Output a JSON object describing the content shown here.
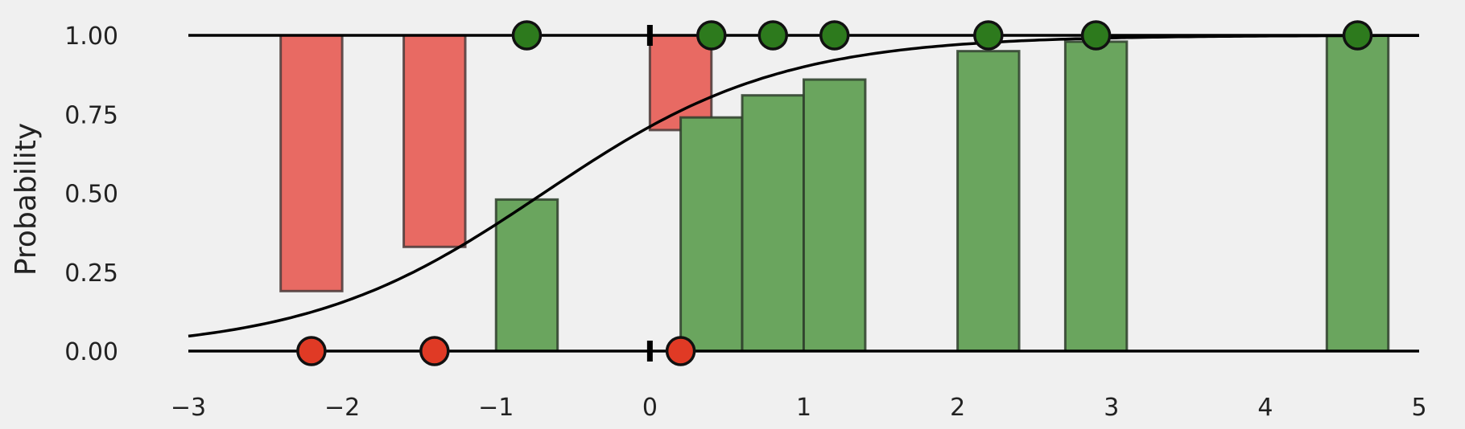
{
  "chart_data": {
    "type": "bar",
    "title": "",
    "xlabel": "",
    "ylabel": "Probability",
    "xlim": [
      -3,
      5
    ],
    "ylim": [
      0,
      1
    ],
    "grid": false,
    "legend": "none",
    "x_ticks": [
      -3,
      -2,
      -1,
      0,
      1,
      2,
      3,
      4,
      5
    ],
    "x_tick_labels": [
      "−3",
      "−2",
      "−1",
      "0",
      "1",
      "2",
      "3",
      "4",
      "5"
    ],
    "y_ticks": [
      0,
      0.25,
      0.5,
      0.75,
      1
    ],
    "y_tick_labels": [
      "0.00",
      "0.25",
      "0.50",
      "0.75",
      "1.00"
    ],
    "threshold_x": 0,
    "curve": {
      "type": "logistic",
      "intercept": 0.9,
      "slope": 1.3,
      "color": "#000000"
    },
    "positive_points": {
      "color": "#2d7a1d",
      "y": 1,
      "x": [
        -0.8,
        0.4,
        0.8,
        1.2,
        2.2,
        2.9,
        4.6
      ]
    },
    "negative_points": {
      "color": "#e03a25",
      "y": 0,
      "x": [
        -2.2,
        -1.4,
        0.2
      ]
    },
    "positive_bars": {
      "color": "#6aa55e",
      "items": [
        {
          "x": -0.8,
          "value": 0.48
        },
        {
          "x": 0.4,
          "value": 0.74
        },
        {
          "x": 0.8,
          "value": 0.81
        },
        {
          "x": 1.2,
          "value": 0.86
        },
        {
          "x": 2.2,
          "value": 0.95
        },
        {
          "x": 2.9,
          "value": 0.98
        },
        {
          "x": 4.6,
          "value": 1.0
        }
      ]
    },
    "negative_bars": {
      "color": "#e86a63",
      "items": [
        {
          "x": -2.2,
          "value": 0.19
        },
        {
          "x": -1.4,
          "value": 0.33
        },
        {
          "x": 0.2,
          "value": 0.7
        }
      ]
    }
  }
}
